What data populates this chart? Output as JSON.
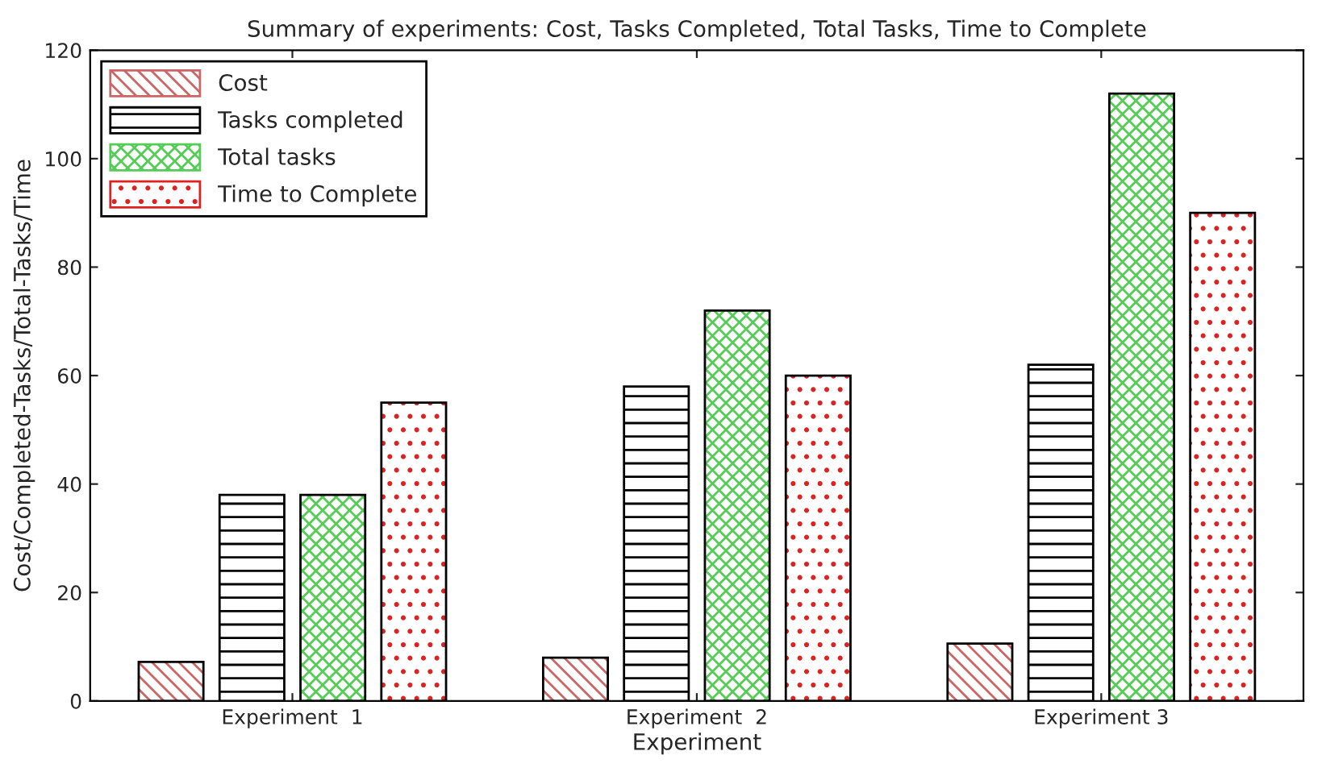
{
  "chart_data": {
    "type": "bar",
    "title": "Summary of experiments: Cost, Tasks Completed, Total Tasks, Time to Complete",
    "xlabel": "Experiment",
    "ylabel": "Cost/Completed-Tasks/Total-Tasks/Time",
    "categories": [
      "Experiment  1",
      "Experiment  2",
      "Experiment 3"
    ],
    "series": [
      {
        "name": "Cost",
        "color": "#cc6666",
        "values": [
          7.2,
          8,
          10.6
        ]
      },
      {
        "name": "Tasks completed",
        "color": "#000000",
        "values": [
          38,
          58,
          62
        ]
      },
      {
        "name": "Total tasks",
        "color": "#55cc55",
        "values": [
          38,
          72,
          112
        ]
      },
      {
        "name": "Time to Complete",
        "color": "#dd2222",
        "values": [
          55,
          60,
          90
        ]
      }
    ],
    "ylim": [
      0,
      120
    ],
    "yticks": [
      0,
      20,
      40,
      60,
      80,
      100,
      120
    ],
    "grid": false,
    "legend": "top left"
  }
}
